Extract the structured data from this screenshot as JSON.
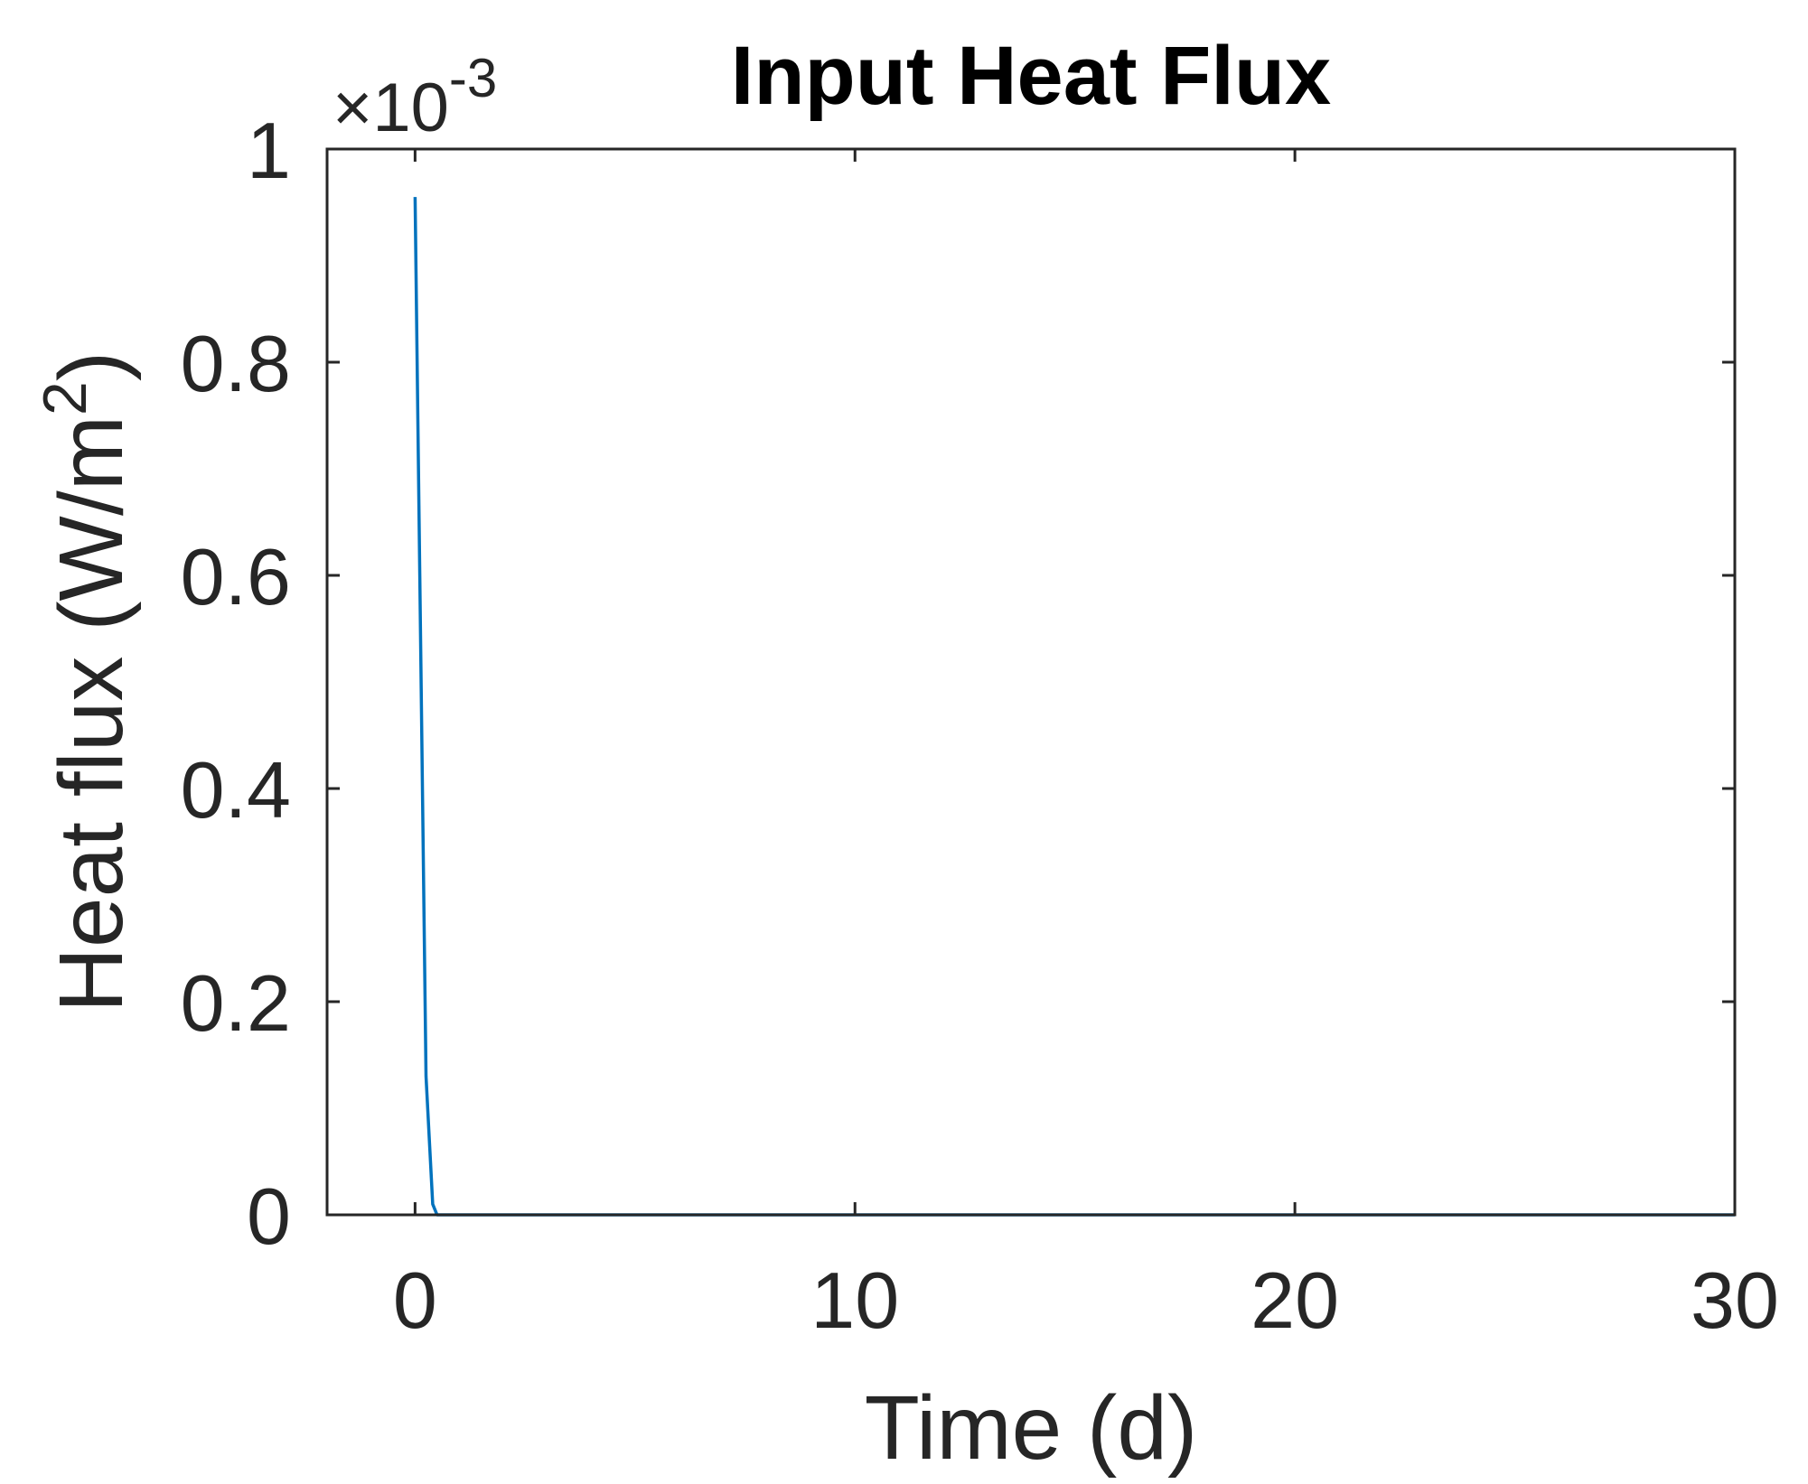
{
  "chart_data": {
    "type": "line",
    "title": "Input Heat Flux",
    "xlabel": "Time (d)",
    "ylabel_text": "Heat flux (W/m",
    "ylabel_superscript": "2",
    "ylabel_close": ")",
    "y_exponent_label": "×10",
    "y_exponent_power": "-3",
    "xlim": [
      -2,
      30
    ],
    "ylim": [
      0,
      1
    ],
    "xticks": [
      0,
      10,
      20,
      30
    ],
    "xtick_labels": [
      "0",
      "10",
      "20",
      "30"
    ],
    "yticks": [
      0,
      0.2,
      0.4,
      0.6,
      0.8,
      1
    ],
    "ytick_labels": [
      "0",
      "0.2",
      "0.4",
      "0.6",
      "0.8",
      "1"
    ],
    "grid": false,
    "series": [
      {
        "color": "#0072BD",
        "x": [
          0,
          0.25,
          0.4,
          0.5,
          1,
          30
        ],
        "y": [
          0.955,
          0.13,
          0.01,
          0,
          0,
          0
        ]
      }
    ]
  }
}
